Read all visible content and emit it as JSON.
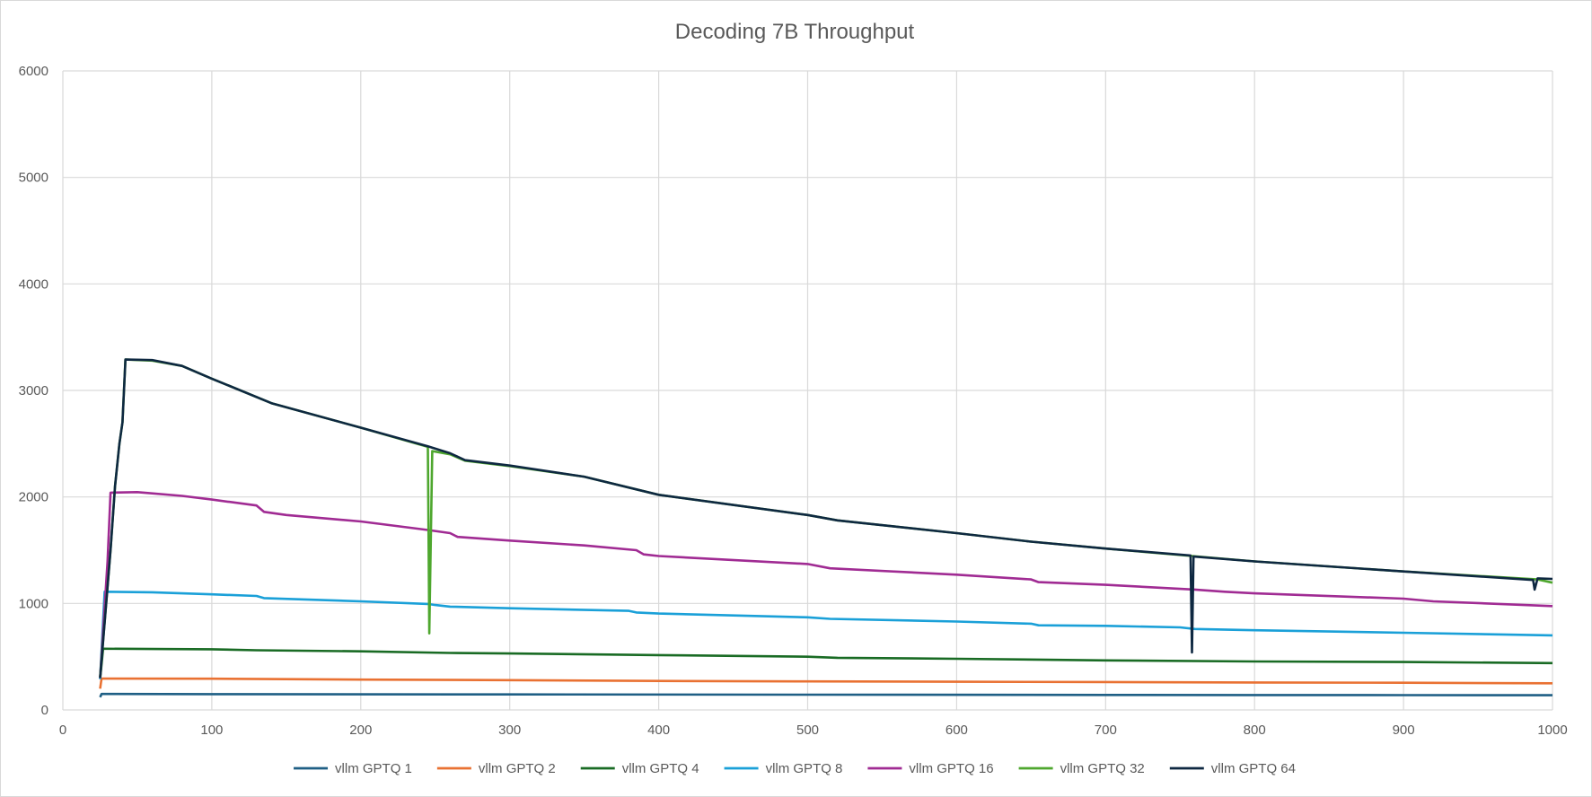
{
  "chart_data": {
    "type": "line",
    "title": "Decoding 7B Throughput",
    "xlabel": "",
    "ylabel": "",
    "xlim": [
      0,
      1000
    ],
    "ylim": [
      0,
      6000
    ],
    "x_ticks": [
      "0",
      "100",
      "200",
      "300",
      "400",
      "500",
      "600",
      "700",
      "800",
      "900",
      "1000"
    ],
    "y_ticks": [
      "0",
      "1000",
      "2000",
      "3000",
      "4000",
      "5000",
      "6000"
    ],
    "grid": true,
    "legend_position": "bottom",
    "series": [
      {
        "name": "vllm GPTQ  1",
        "color": "#1f5f85",
        "points": [
          [
            25,
            120
          ],
          [
            26,
            150
          ],
          [
            100,
            148
          ],
          [
            300,
            146
          ],
          [
            500,
            143
          ],
          [
            700,
            141
          ],
          [
            900,
            139
          ],
          [
            1000,
            138
          ]
        ]
      },
      {
        "name": "vllm GPTQ  2",
        "color": "#e97132",
        "points": [
          [
            25,
            200
          ],
          [
            26,
            295
          ],
          [
            100,
            293
          ],
          [
            200,
            285
          ],
          [
            300,
            280
          ],
          [
            400,
            272
          ],
          [
            500,
            268
          ],
          [
            600,
            265
          ],
          [
            700,
            262
          ],
          [
            800,
            258
          ],
          [
            900,
            255
          ],
          [
            1000,
            250
          ]
        ]
      },
      {
        "name": "vllm GPTQ  4",
        "color": "#196b24",
        "points": [
          [
            25,
            290
          ],
          [
            27,
            575
          ],
          [
            100,
            570
          ],
          [
            130,
            560
          ],
          [
            200,
            550
          ],
          [
            260,
            535
          ],
          [
            300,
            530
          ],
          [
            400,
            515
          ],
          [
            500,
            500
          ],
          [
            520,
            490
          ],
          [
            600,
            480
          ],
          [
            700,
            465
          ],
          [
            800,
            455
          ],
          [
            900,
            450
          ],
          [
            1000,
            440
          ]
        ]
      },
      {
        "name": "vllm GPTQ  8",
        "color": "#1aa0d8",
        "points": [
          [
            25,
            290
          ],
          [
            28,
            1110
          ],
          [
            60,
            1105
          ],
          [
            100,
            1085
          ],
          [
            130,
            1070
          ],
          [
            135,
            1050
          ],
          [
            200,
            1020
          ],
          [
            245,
            995
          ],
          [
            250,
            985
          ],
          [
            260,
            970
          ],
          [
            300,
            955
          ],
          [
            380,
            930
          ],
          [
            385,
            915
          ],
          [
            400,
            905
          ],
          [
            500,
            870
          ],
          [
            515,
            855
          ],
          [
            600,
            830
          ],
          [
            650,
            810
          ],
          [
            655,
            795
          ],
          [
            700,
            790
          ],
          [
            750,
            775
          ],
          [
            760,
            760
          ],
          [
            800,
            748
          ],
          [
            900,
            725
          ],
          [
            1000,
            700
          ]
        ]
      },
      {
        "name": "vllm GPTQ  16",
        "color": "#a02b93",
        "points": [
          [
            25,
            300
          ],
          [
            30,
            1400
          ],
          [
            32,
            2040
          ],
          [
            50,
            2045
          ],
          [
            80,
            2010
          ],
          [
            100,
            1975
          ],
          [
            130,
            1920
          ],
          [
            135,
            1860
          ],
          [
            150,
            1830
          ],
          [
            200,
            1770
          ],
          [
            245,
            1690
          ],
          [
            260,
            1660
          ],
          [
            265,
            1625
          ],
          [
            300,
            1590
          ],
          [
            350,
            1545
          ],
          [
            385,
            1500
          ],
          [
            390,
            1460
          ],
          [
            400,
            1445
          ],
          [
            500,
            1370
          ],
          [
            515,
            1330
          ],
          [
            600,
            1270
          ],
          [
            650,
            1225
          ],
          [
            655,
            1200
          ],
          [
            700,
            1175
          ],
          [
            760,
            1130
          ],
          [
            780,
            1110
          ],
          [
            800,
            1095
          ],
          [
            900,
            1045
          ],
          [
            920,
            1020
          ],
          [
            1000,
            975
          ]
        ]
      },
      {
        "name": "vllm GPTQ  32",
        "color": "#4ea72e",
        "points": [
          [
            25,
            310
          ],
          [
            32,
            1500
          ],
          [
            35,
            2100
          ],
          [
            38,
            2500
          ],
          [
            40,
            2700
          ],
          [
            42,
            3290
          ],
          [
            60,
            3280
          ],
          [
            80,
            3230
          ],
          [
            100,
            3110
          ],
          [
            140,
            2880
          ],
          [
            200,
            2650
          ],
          [
            245,
            2470
          ],
          [
            246,
            720
          ],
          [
            248,
            2430
          ],
          [
            260,
            2400
          ],
          [
            270,
            2340
          ],
          [
            300,
            2290
          ],
          [
            350,
            2190
          ],
          [
            400,
            2020
          ],
          [
            500,
            1830
          ],
          [
            520,
            1780
          ],
          [
            600,
            1660
          ],
          [
            650,
            1580
          ],
          [
            700,
            1515
          ],
          [
            758,
            1445
          ],
          [
            800,
            1395
          ],
          [
            900,
            1300
          ],
          [
            990,
            1225
          ],
          [
            1000,
            1195
          ]
        ]
      },
      {
        "name": "vllm GPTQ  64",
        "color": "#0e2841",
        "points": [
          [
            25,
            300
          ],
          [
            32,
            1500
          ],
          [
            35,
            2100
          ],
          [
            38,
            2500
          ],
          [
            40,
            2700
          ],
          [
            42,
            3290
          ],
          [
            60,
            3285
          ],
          [
            80,
            3230
          ],
          [
            100,
            3110
          ],
          [
            140,
            2880
          ],
          [
            200,
            2650
          ],
          [
            245,
            2475
          ],
          [
            260,
            2410
          ],
          [
            270,
            2345
          ],
          [
            300,
            2295
          ],
          [
            350,
            2190
          ],
          [
            400,
            2020
          ],
          [
            500,
            1830
          ],
          [
            520,
            1780
          ],
          [
            600,
            1660
          ],
          [
            650,
            1580
          ],
          [
            700,
            1515
          ],
          [
            757,
            1450
          ],
          [
            758,
            540
          ],
          [
            759,
            1440
          ],
          [
            800,
            1395
          ],
          [
            900,
            1300
          ],
          [
            987,
            1220
          ],
          [
            988,
            1130
          ],
          [
            990,
            1235
          ],
          [
            1000,
            1230
          ]
        ]
      }
    ]
  }
}
